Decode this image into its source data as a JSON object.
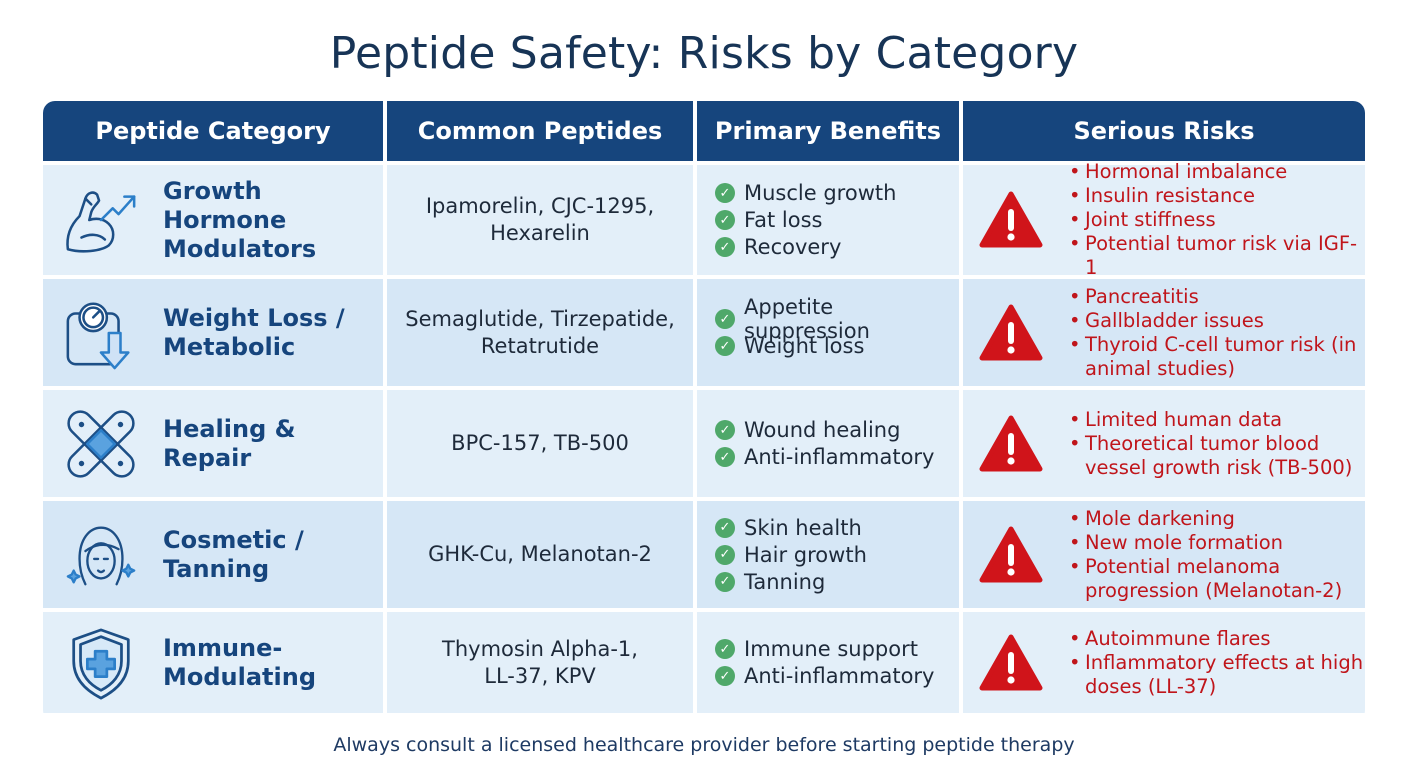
{
  "title": "Peptide Safety: Risks by Category",
  "headers": [
    "Peptide Category",
    "Common Peptides",
    "Primary Benefits",
    "Serious Risks"
  ],
  "rows": [
    {
      "category": "Growth Hormone\nModulators",
      "icon": "flexed-arm-growth-icon",
      "peptides": "Ipamorelin, CJC-1295,\nHexarelin",
      "benefits": [
        "Muscle growth",
        "Fat loss",
        "Recovery"
      ],
      "risks": [
        "Hormonal imbalance",
        "Insulin resistance",
        "Joint stiffness",
        "Potential tumor risk via IGF-1"
      ]
    },
    {
      "category": "Weight Loss /\nMetabolic",
      "icon": "scale-down-arrow-icon",
      "peptides": "Semaglutide, Tirzepatide,\nRetatrutide",
      "benefits": [
        "Appetite suppression",
        "Weight loss"
      ],
      "risks": [
        "Pancreatitis",
        "Gallbladder issues",
        "Thyroid C-cell tumor risk (in animal studies)"
      ]
    },
    {
      "category": "Healing & Repair",
      "icon": "bandage-icon",
      "peptides": "BPC-157, TB-500",
      "benefits": [
        "Wound healing",
        "Anti-inflammatory"
      ],
      "risks": [
        "Limited human data",
        "Theoretical tumor blood vessel growth risk (TB-500)"
      ]
    },
    {
      "category": "Cosmetic /\nTanning",
      "icon": "face-sparkle-icon",
      "peptides": "GHK-Cu, Melanotan-2",
      "benefits": [
        "Skin health",
        "Hair growth",
        "Tanning"
      ],
      "risks": [
        "Mole darkening",
        "New mole formation",
        "Potential melanoma progression (Melanotan-2)"
      ]
    },
    {
      "category": "Immune-\nModulating",
      "icon": "shield-cross-icon",
      "peptides": "Thymosin Alpha-1,\nLL-37, KPV",
      "benefits": [
        "Immune support",
        "Anti-inflammatory"
      ],
      "risks": [
        "Autoimmune flares",
        "Inflammatory effects at high doses (LL-37)"
      ]
    }
  ],
  "footer": "Always consult a licensed healthcare provider before starting peptide therapy",
  "colors": {
    "header_bg": "#16457d",
    "row_a": "#e3eff9",
    "row_b": "#d6e7f6",
    "risk": "#c0151b",
    "check": "#4fa86a",
    "warning": "#d0141a"
  }
}
